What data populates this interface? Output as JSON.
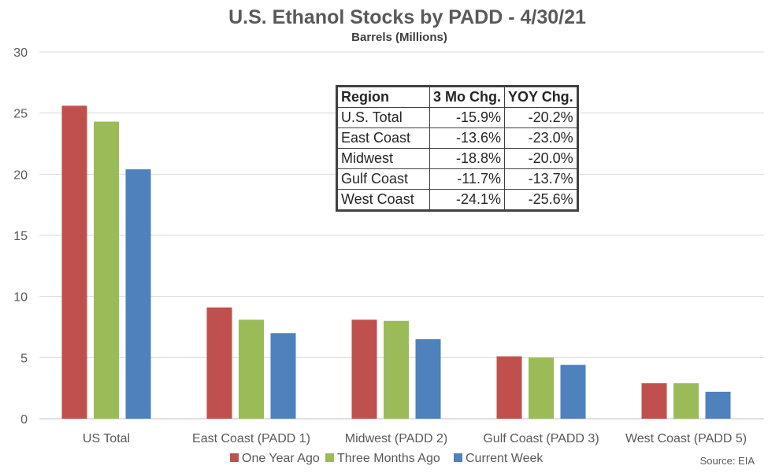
{
  "chart_data": {
    "type": "bar",
    "title": "U.S. Ethanol Stocks by PADD - 4/30/21",
    "subtitle": "Barrels (Millions)",
    "xlabel": "",
    "ylabel": "",
    "ylim": [
      0,
      30
    ],
    "yticks": [
      0,
      5,
      10,
      15,
      20,
      25,
      30
    ],
    "grid": true,
    "legend_position": "bottom",
    "categories": [
      "US Total",
      "East Coast (PADD 1)",
      "Midwest (PADD 2)",
      "Gulf Coast (PADD 3)",
      "West Coast (PADD 5)"
    ],
    "series": [
      {
        "name": "One Year Ago",
        "color": "#C0504D",
        "values": [
          25.6,
          9.1,
          8.1,
          5.1,
          2.9
        ]
      },
      {
        "name": "Three Months Ago",
        "color": "#9BBB59",
        "values": [
          24.3,
          8.1,
          8.0,
          5.0,
          2.9
        ]
      },
      {
        "name": "Current Week",
        "color": "#4F81BD",
        "values": [
          20.4,
          7.0,
          6.5,
          4.4,
          2.2
        ]
      }
    ]
  },
  "table": {
    "headers": [
      "Region",
      "3 Mo Chg.",
      "YOY Chg."
    ],
    "rows": [
      [
        "U.S. Total",
        "-15.9%",
        "-20.2%"
      ],
      [
        "East Coast",
        "-13.6%",
        "-23.0%"
      ],
      [
        "Midwest",
        "-18.8%",
        "-20.0%"
      ],
      [
        "Gulf Coast",
        "-11.7%",
        "-13.7%"
      ],
      [
        "West Coast",
        "-24.1%",
        "-25.6%"
      ]
    ]
  },
  "source": "Source: EIA",
  "colors": {
    "gridline": "#D9D9D9",
    "axis": "#BFBFBF"
  }
}
